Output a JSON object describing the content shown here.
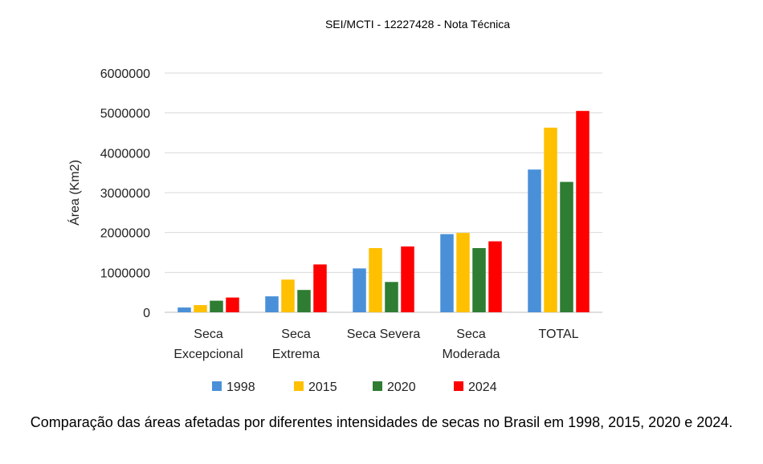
{
  "header": {
    "text": "SEI/MCTI - 12227428 - Nota Técnica"
  },
  "caption": "Comparação das áreas afetadas por diferentes intensidades de secas no Brasil em 1998, 2015, 2020 e 2024.",
  "chart_data": {
    "type": "bar",
    "title": "",
    "xlabel": "",
    "ylabel": "Área (Km2)",
    "ylim": [
      0,
      6000000
    ],
    "yticks": [
      "0",
      "1000000",
      "2000000",
      "3000000",
      "4000000",
      "5000000",
      "6000000"
    ],
    "grid": true,
    "legend_position": "bottom",
    "categories": [
      [
        "Seca",
        "Excepcional"
      ],
      [
        "Seca",
        "Extrema"
      ],
      [
        "Seca Severa"
      ],
      [
        "Seca",
        "Moderada"
      ],
      [
        "TOTAL"
      ]
    ],
    "series": [
      {
        "name": "1998",
        "color": "#4a90d9",
        "values": [
          120000,
          400000,
          1100000,
          1960000,
          3580000
        ]
      },
      {
        "name": "2015",
        "color": "#ffc000",
        "values": [
          180000,
          820000,
          1610000,
          1990000,
          4630000
        ]
      },
      {
        "name": "2020",
        "color": "#2e7d32",
        "values": [
          290000,
          560000,
          760000,
          1610000,
          3270000
        ]
      },
      {
        "name": "2024",
        "color": "#ff0000",
        "values": [
          370000,
          1200000,
          1650000,
          1780000,
          5050000
        ]
      }
    ]
  }
}
